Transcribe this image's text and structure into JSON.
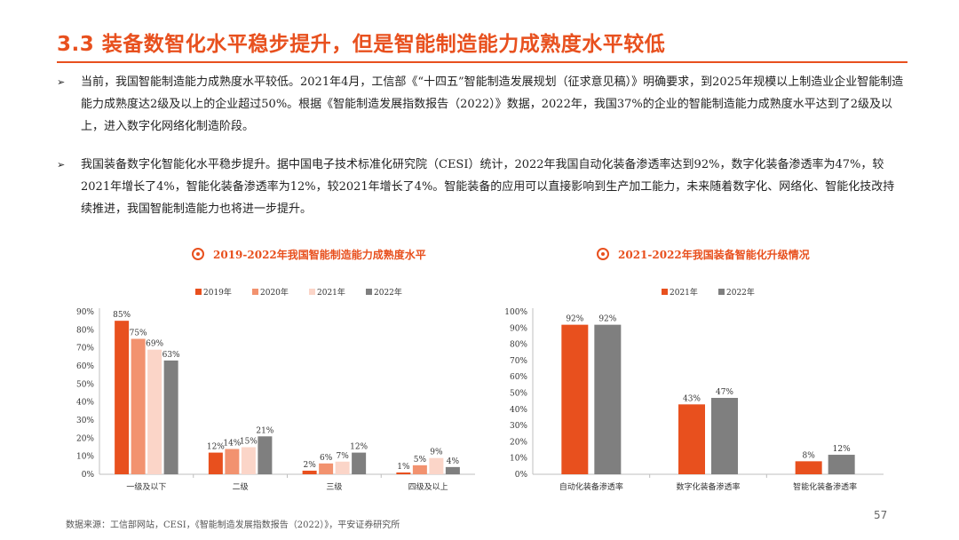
{
  "title": "3.3 装备数智化水平稳步提升，但是智能制造能力成熟度水平较低",
  "bullets": [
    "当前，我国智能制造能力成熟度水平较低。2021年4月，工信部《“十四五”智能制造发展规划（征求意见稿）》明确要求，到2025年规模以上制造业企业智能制造能力成熟度达2级及以上的企业超过50%。根据《智能制造发展指数报告（2022）》数据，2022年，我国37%的企业的智能制造能力成熟度水平达到了2级及以上，进入数字化网络化制造阶段。",
    "我国装备数字化智能化水平稳步提升。据中国电子技术标准化研究院（CESI）统计，2022年我国自动化装备渗透率达到92%，数字化装备渗透率为47%，较2021年增长了4%，智能化装备渗透率为12%，较2021年增长了4%。智能装备的应用可以直接影响到生产加工能力，未来随着数字化、网络化、智能化技改持续推进，我国智能制造能力也将进一步提升。"
  ],
  "bullet_marker": "➢",
  "chart_data": [
    {
      "type": "bar",
      "title": "2019-2022年我国智能制造能力成熟度水平",
      "categories": [
        "一级及以下",
        "二级",
        "三级",
        "四级及以上"
      ],
      "series": [
        {
          "name": "2019年",
          "values": [
            85,
            12,
            2,
            1
          ],
          "color": "#e8501e"
        },
        {
          "name": "2020年",
          "values": [
            75,
            14,
            6,
            5
          ],
          "color": "#f2926f"
        },
        {
          "name": "2021年",
          "values": [
            69,
            15,
            7,
            9
          ],
          "color": "#fbd5c8"
        },
        {
          "name": "2022年",
          "values": [
            63,
            21,
            12,
            4
          ],
          "color": "#7f7f7f"
        }
      ],
      "ylim": [
        0,
        90
      ],
      "yticks": [
        0,
        10,
        20,
        30,
        40,
        50,
        60,
        70,
        80,
        90
      ],
      "value_format": "percent",
      "legend": "top",
      "grid": false
    },
    {
      "type": "bar",
      "title": "2021-2022年我国装备智能化升级情况",
      "categories": [
        "自动化装备渗透率",
        "数字化装备渗透率",
        "智能化装备渗透率"
      ],
      "series": [
        {
          "name": "2021年",
          "values": [
            92,
            43,
            8
          ],
          "color": "#e8501e"
        },
        {
          "name": "2022年",
          "values": [
            92,
            47,
            12
          ],
          "color": "#7f7f7f"
        }
      ],
      "ylim": [
        0,
        100
      ],
      "yticks": [
        0,
        10,
        20,
        30,
        40,
        50,
        60,
        70,
        80,
        90,
        100
      ],
      "value_format": "percent",
      "legend": "top",
      "grid": false
    }
  ],
  "source": "数据来源：工信部网站，CESI，《智能制造发展指数报告（2022）》，平安证券研究所",
  "page_number": "57",
  "colors": {
    "accent": "#e8501e",
    "text": "#222222"
  }
}
